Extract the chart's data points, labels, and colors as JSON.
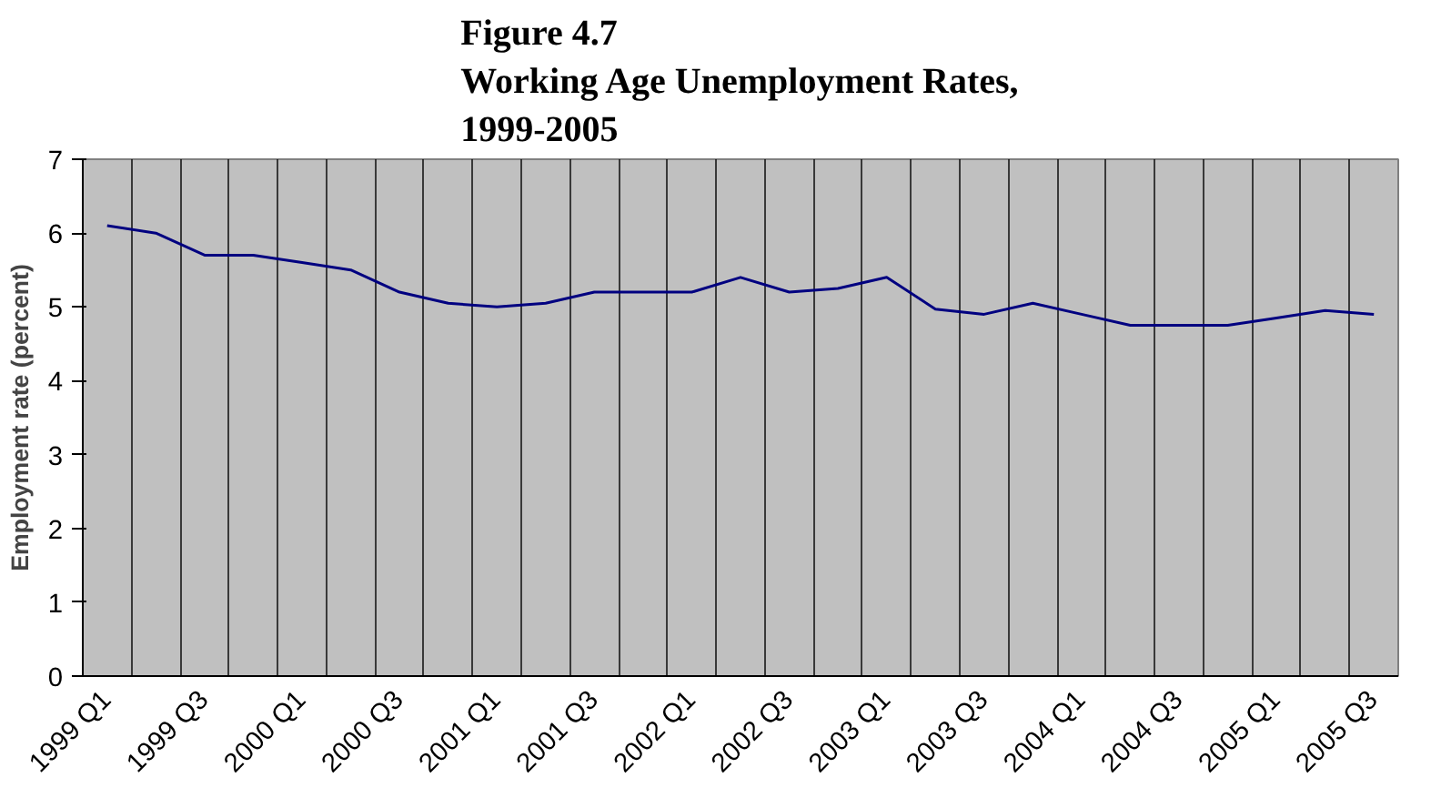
{
  "chart_data": {
    "type": "line",
    "title": "Figure 4.7\nWorking Age Unemployment Rates,\n1999-2005",
    "ylabel": "Employment rate (percent)",
    "categories": [
      "1999 Q1",
      null,
      "1999 Q3",
      null,
      "2000 Q1",
      null,
      "2000 Q3",
      null,
      "2001 Q1",
      null,
      "2001 Q3",
      null,
      "2002 Q1",
      null,
      "2002 Q3",
      null,
      "2003 Q1",
      null,
      "2003 Q3",
      null,
      "2004 Q1",
      null,
      "2004 Q3",
      null,
      "2005 Q1",
      null,
      "2005 Q3"
    ],
    "series": [
      {
        "color": "#000080",
        "values": [
          6.1,
          6.0,
          5.7,
          5.7,
          5.6,
          5.5,
          5.2,
          5.05,
          5.0,
          5.05,
          5.2,
          5.2,
          5.2,
          5.4,
          5.2,
          5.25,
          5.4,
          4.97,
          4.9,
          5.05,
          4.9,
          4.75,
          4.75,
          4.75,
          4.85,
          4.95,
          4.9
        ]
      }
    ],
    "ylim": [
      0,
      7
    ],
    "yticks": [
      0,
      1,
      2,
      3,
      4,
      5,
      6,
      7
    ],
    "grid": "x",
    "marker": "none",
    "line_style": "solid"
  }
}
